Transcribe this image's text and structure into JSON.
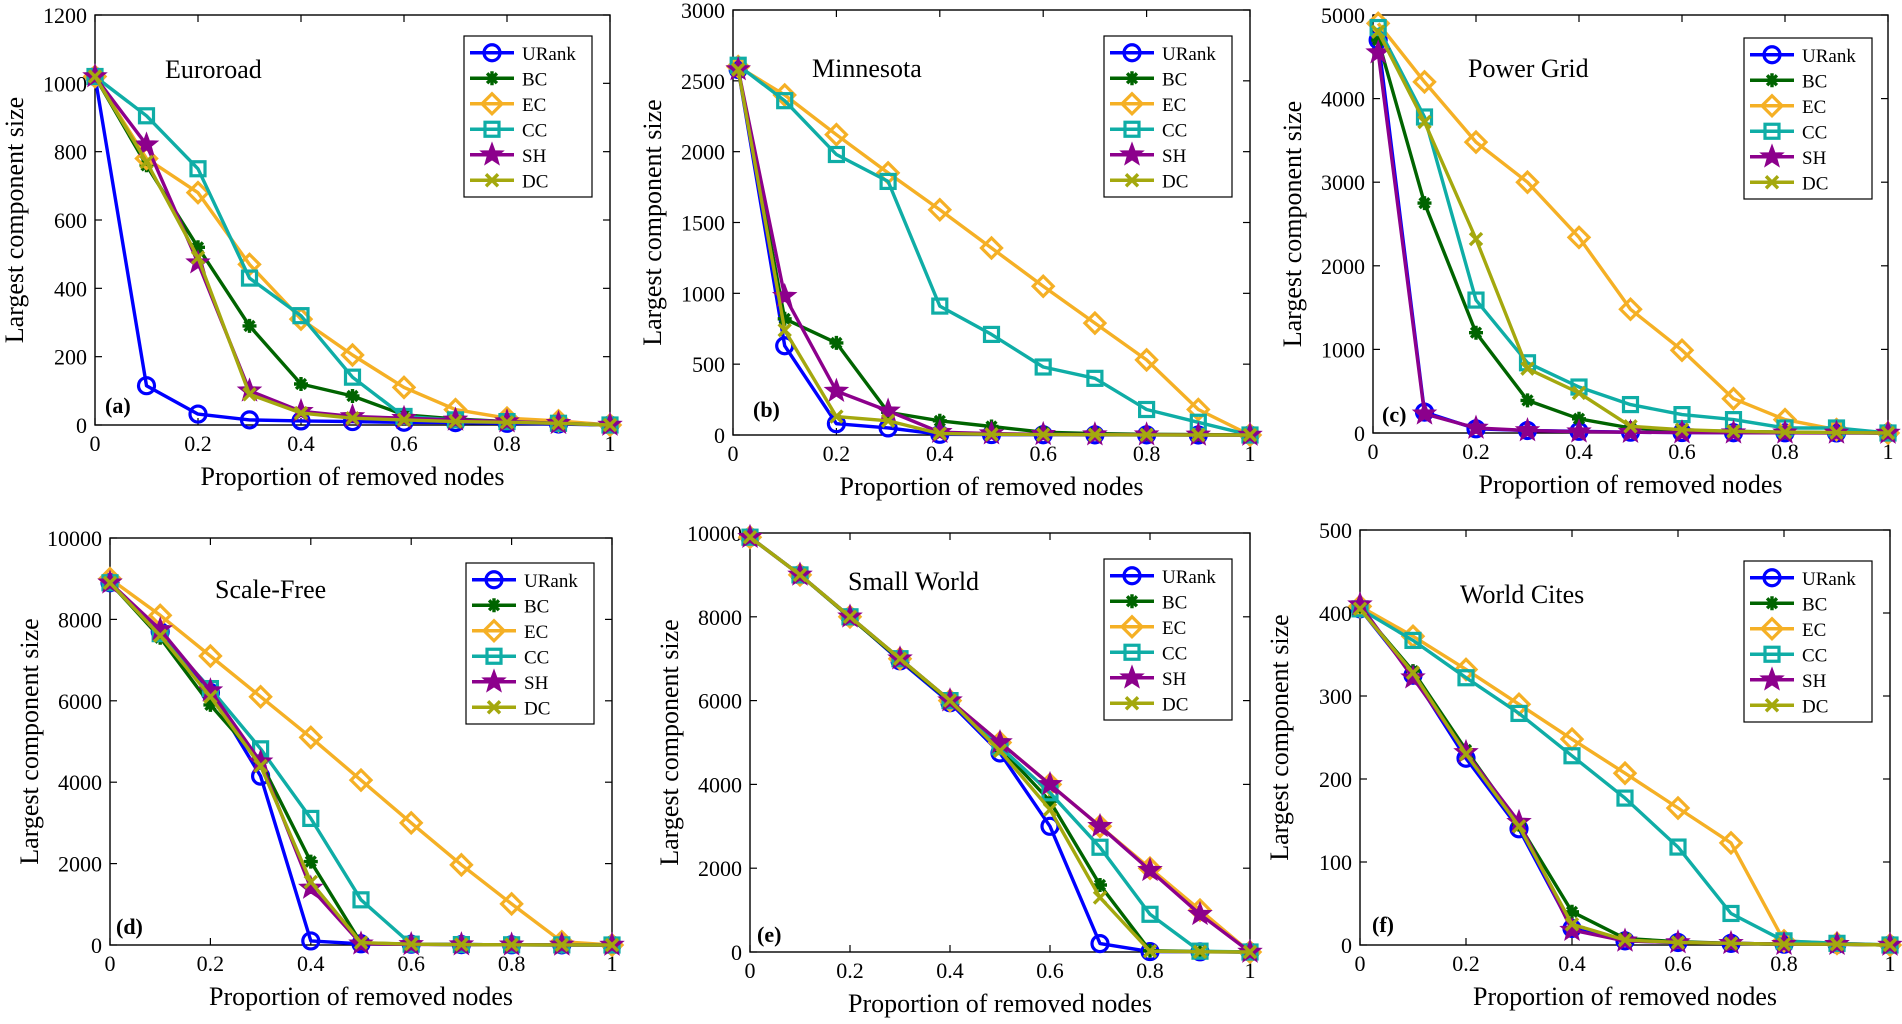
{
  "colors": {
    "URank": "#0000ff",
    "BC": "#006400",
    "EC": "#f5b025",
    "CC": "#0fada6",
    "SH": "#8c008c",
    "DC": "#a4a80e"
  },
  "chart_data": [
    {
      "type": "line",
      "panel": "(a)",
      "title": "Euroroad",
      "xlabel": "Proportion of removed nodes",
      "ylabel": "Largest component size",
      "xlim": [
        0,
        1
      ],
      "ylim": [
        0,
        1200
      ],
      "xticks": [
        0,
        0.2,
        0.4,
        0.6,
        0.8,
        1
      ],
      "xtick_labels": [
        "0",
        "0.2",
        "0.4",
        "0.6",
        "0.8",
        "1"
      ],
      "yticks": [
        0,
        200,
        400,
        600,
        800,
        1000,
        1200
      ],
      "ytick_labels": [
        "0",
        "200",
        "400",
        "600",
        "800",
        "1000",
        "1200"
      ],
      "x": [
        0,
        0.1,
        0.2,
        0.3,
        0.4,
        0.5,
        0.6,
        0.7,
        0.8,
        0.9,
        1
      ],
      "series": [
        {
          "name": "URank",
          "marker": "circle",
          "values": [
            1020,
            115,
            32,
            15,
            12,
            10,
            8,
            7,
            5,
            3,
            0
          ]
        },
        {
          "name": "BC",
          "marker": "asterisk",
          "values": [
            1020,
            760,
            520,
            290,
            120,
            85,
            30,
            18,
            10,
            5,
            0
          ]
        },
        {
          "name": "EC",
          "marker": "diamond",
          "values": [
            1020,
            780,
            680,
            470,
            310,
            205,
            110,
            45,
            20,
            12,
            0
          ]
        },
        {
          "name": "CC",
          "marker": "square",
          "values": [
            1020,
            905,
            750,
            430,
            320,
            140,
            25,
            15,
            10,
            5,
            0
          ]
        },
        {
          "name": "SH",
          "marker": "star",
          "values": [
            1020,
            820,
            475,
            100,
            40,
            25,
            20,
            15,
            10,
            5,
            0
          ]
        },
        {
          "name": "DC",
          "marker": "x",
          "values": [
            1020,
            770,
            490,
            90,
            35,
            20,
            15,
            10,
            8,
            5,
            0
          ]
        }
      ]
    },
    {
      "type": "line",
      "panel": "(b)",
      "title": "Minnesota",
      "xlabel": "Proportion of removed nodes",
      "ylabel": "Largest component size",
      "xlim": [
        0,
        1
      ],
      "ylim": [
        0,
        3000
      ],
      "xticks": [
        0,
        0.2,
        0.4,
        0.6,
        0.8,
        1
      ],
      "xtick_labels": [
        "0",
        "0.2",
        "0.4",
        "0.6",
        "0.8",
        "1"
      ],
      "yticks": [
        0,
        500,
        1000,
        1500,
        2000,
        2500,
        3000
      ],
      "ytick_labels": [
        "0",
        "500",
        "1000",
        "1500",
        "2000",
        "2500",
        "3000"
      ],
      "x": [
        0.01,
        0.1,
        0.2,
        0.3,
        0.4,
        0.5,
        0.6,
        0.7,
        0.8,
        0.9,
        1
      ],
      "series": [
        {
          "name": "URank",
          "marker": "circle",
          "values": [
            2580,
            630,
            80,
            50,
            5,
            3,
            2,
            1,
            1,
            0,
            0
          ]
        },
        {
          "name": "BC",
          "marker": "asterisk",
          "values": [
            2580,
            820,
            650,
            160,
            100,
            60,
            20,
            10,
            5,
            3,
            0
          ]
        },
        {
          "name": "EC",
          "marker": "diamond",
          "values": [
            2600,
            2400,
            2120,
            1850,
            1590,
            1320,
            1050,
            790,
            530,
            180,
            0
          ]
        },
        {
          "name": "CC",
          "marker": "square",
          "values": [
            2610,
            2360,
            1980,
            1790,
            910,
            710,
            480,
            400,
            180,
            90,
            0
          ]
        },
        {
          "name": "SH",
          "marker": "star",
          "values": [
            2580,
            980,
            310,
            170,
            20,
            10,
            5,
            3,
            2,
            1,
            0
          ]
        },
        {
          "name": "DC",
          "marker": "x",
          "values": [
            2580,
            740,
            130,
            100,
            10,
            5,
            3,
            2,
            1,
            0,
            0
          ]
        }
      ]
    },
    {
      "type": "line",
      "panel": "(c)",
      "title": "Power Grid",
      "xlabel": "Proportion of removed nodes",
      "ylabel": "Largest component size",
      "xlim": [
        0,
        1
      ],
      "ylim": [
        0,
        5000
      ],
      "xticks": [
        0,
        0.2,
        0.4,
        0.6,
        0.8,
        1
      ],
      "xtick_labels": [
        "0",
        "0.2",
        "0.4",
        "0.6",
        "0.8",
        "1"
      ],
      "yticks": [
        0,
        1000,
        2000,
        3000,
        4000,
        5000
      ],
      "ytick_labels": [
        "0",
        "1000",
        "2000",
        "3000",
        "4000",
        "5000"
      ],
      "x": [
        0.01,
        0.1,
        0.2,
        0.3,
        0.4,
        0.5,
        0.6,
        0.7,
        0.8,
        0.9,
        1
      ],
      "series": [
        {
          "name": "URank",
          "marker": "circle",
          "values": [
            4700,
            250,
            50,
            30,
            20,
            10,
            5,
            3,
            2,
            1,
            0
          ]
        },
        {
          "name": "BC",
          "marker": "asterisk",
          "values": [
            4700,
            2750,
            1200,
            390,
            170,
            60,
            30,
            20,
            10,
            5,
            0
          ]
        },
        {
          "name": "EC",
          "marker": "diamond",
          "values": [
            4900,
            4200,
            3480,
            3000,
            2340,
            1480,
            990,
            410,
            160,
            40,
            0
          ]
        },
        {
          "name": "CC",
          "marker": "square",
          "values": [
            4850,
            3780,
            1590,
            840,
            550,
            340,
            220,
            160,
            60,
            60,
            0
          ]
        },
        {
          "name": "SH",
          "marker": "star",
          "values": [
            4550,
            230,
            60,
            30,
            15,
            10,
            5,
            3,
            2,
            1,
            0
          ]
        },
        {
          "name": "DC",
          "marker": "x",
          "values": [
            4800,
            3720,
            2320,
            770,
            480,
            80,
            40,
            20,
            10,
            5,
            0
          ]
        }
      ]
    },
    {
      "type": "line",
      "panel": "(d)",
      "title": "Scale-Free",
      "xlabel": "Proportion of removed nodes",
      "ylabel": "Largest component size",
      "xlim": [
        0,
        1
      ],
      "ylim": [
        0,
        10000
      ],
      "xticks": [
        0,
        0.2,
        0.4,
        0.6,
        0.8,
        1
      ],
      "xtick_labels": [
        "0",
        "0.2",
        "0.4",
        "0.6",
        "0.8",
        "1"
      ],
      "yticks": [
        0,
        2000,
        4000,
        6000,
        8000,
        10000
      ],
      "ytick_labels": [
        "0",
        "2000",
        "4000",
        "6000",
        "8000",
        "10000"
      ],
      "x": [
        0,
        0.1,
        0.2,
        0.3,
        0.4,
        0.5,
        0.6,
        0.7,
        0.8,
        0.9,
        1
      ],
      "series": [
        {
          "name": "URank",
          "marker": "circle",
          "values": [
            8900,
            7700,
            6200,
            4150,
            100,
            30,
            20,
            10,
            5,
            3,
            0
          ]
        },
        {
          "name": "BC",
          "marker": "asterisk",
          "values": [
            8900,
            7550,
            5900,
            4500,
            2050,
            50,
            20,
            10,
            5,
            3,
            0
          ]
        },
        {
          "name": "EC",
          "marker": "diamond",
          "values": [
            9000,
            8100,
            7100,
            6100,
            5100,
            4050,
            3000,
            1970,
            1010,
            80,
            0
          ]
        },
        {
          "name": "CC",
          "marker": "square",
          "values": [
            8900,
            7650,
            6300,
            4820,
            3110,
            1110,
            20,
            10,
            5,
            3,
            0
          ]
        },
        {
          "name": "SH",
          "marker": "star",
          "values": [
            8900,
            7750,
            6250,
            4500,
            1400,
            30,
            15,
            10,
            5,
            3,
            0
          ]
        },
        {
          "name": "DC",
          "marker": "x",
          "values": [
            8900,
            7600,
            6100,
            4400,
            1550,
            60,
            20,
            10,
            5,
            3,
            0
          ]
        }
      ]
    },
    {
      "type": "line",
      "panel": "(e)",
      "title": "Small World",
      "xlabel": "Proportion of removed nodes",
      "ylabel": "Largest component size",
      "xlim": [
        0,
        1
      ],
      "ylim": [
        0,
        10000
      ],
      "xticks": [
        0,
        0.2,
        0.4,
        0.6,
        0.8,
        1
      ],
      "xtick_labels": [
        "0",
        "0.2",
        "0.4",
        "0.6",
        "0.8",
        "1"
      ],
      "yticks": [
        0,
        2000,
        4000,
        6000,
        8000,
        10000
      ],
      "ytick_labels": [
        "0",
        "2000",
        "4000",
        "6000",
        "8000",
        "10000"
      ],
      "x": [
        0,
        0.1,
        0.2,
        0.3,
        0.4,
        0.5,
        0.6,
        0.7,
        0.8,
        0.9,
        1
      ],
      "series": [
        {
          "name": "URank",
          "marker": "circle",
          "values": [
            9900,
            9000,
            8000,
            6950,
            5950,
            4750,
            3000,
            200,
            10,
            5,
            0
          ]
        },
        {
          "name": "BC",
          "marker": "asterisk",
          "values": [
            9900,
            9000,
            7980,
            6980,
            5980,
            4880,
            3600,
            1600,
            30,
            10,
            0
          ]
        },
        {
          "name": "EC",
          "marker": "diamond",
          "values": [
            9900,
            9000,
            8000,
            7000,
            6000,
            5000,
            4000,
            3000,
            2000,
            1000,
            0
          ]
        },
        {
          "name": "CC",
          "marker": "square",
          "values": [
            9900,
            9000,
            8000,
            7000,
            6000,
            4900,
            3800,
            2500,
            900,
            20,
            0
          ]
        },
        {
          "name": "SH",
          "marker": "star",
          "values": [
            9900,
            9000,
            8000,
            7000,
            6000,
            5000,
            4000,
            3000,
            1950,
            900,
            0
          ]
        },
        {
          "name": "DC",
          "marker": "x",
          "values": [
            9900,
            9000,
            8000,
            7000,
            6000,
            4800,
            3400,
            1300,
            20,
            5,
            0
          ]
        }
      ]
    },
    {
      "type": "line",
      "panel": "(f)",
      "title": "World Cites",
      "xlabel": "Proportion of removed nodes",
      "ylabel": "Largest component size",
      "xlim": [
        0,
        1
      ],
      "ylim": [
        0,
        500
      ],
      "xticks": [
        0,
        0.2,
        0.4,
        0.6,
        0.8,
        1
      ],
      "xtick_labels": [
        "0",
        "0.2",
        "0.4",
        "0.6",
        "0.8",
        "1"
      ],
      "yticks": [
        0,
        100,
        200,
        300,
        400,
        500
      ],
      "ytick_labels": [
        "0",
        "100",
        "200",
        "300",
        "400",
        "500"
      ],
      "x": [
        0,
        0.1,
        0.2,
        0.3,
        0.4,
        0.5,
        0.6,
        0.7,
        0.8,
        0.9,
        1
      ],
      "series": [
        {
          "name": "URank",
          "marker": "circle",
          "values": [
            405,
            325,
            225,
            140,
            20,
            5,
            3,
            2,
            1,
            1,
            0
          ]
        },
        {
          "name": "BC",
          "marker": "asterisk",
          "values": [
            405,
            330,
            235,
            145,
            40,
            8,
            4,
            2,
            1,
            1,
            0
          ]
        },
        {
          "name": "EC",
          "marker": "diamond",
          "values": [
            408,
            372,
            332,
            290,
            248,
            207,
            165,
            123,
            5,
            2,
            0
          ]
        },
        {
          "name": "CC",
          "marker": "square",
          "values": [
            405,
            367,
            322,
            279,
            228,
            177,
            118,
            38,
            5,
            2,
            0
          ]
        },
        {
          "name": "SH",
          "marker": "star",
          "values": [
            410,
            322,
            232,
            148,
            18,
            5,
            3,
            2,
            1,
            1,
            0
          ]
        },
        {
          "name": "DC",
          "marker": "x",
          "values": [
            405,
            328,
            230,
            143,
            25,
            6,
            3,
            2,
            1,
            1,
            0
          ]
        }
      ]
    }
  ]
}
